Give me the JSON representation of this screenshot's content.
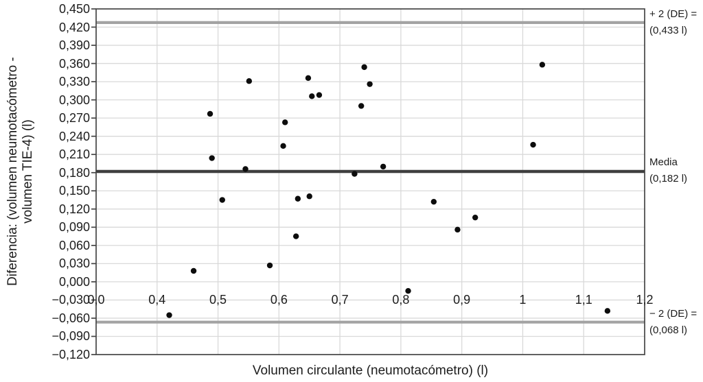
{
  "chart_data": {
    "type": "scatter",
    "title": "",
    "xlabel": "Volumen circulante (neumotacómetro) (l)",
    "ylabel_line1": "Diferencia: (volumen neumotacómetro -",
    "ylabel_line2": "volumen TIE-4) (l)",
    "x_tick_labels": [
      "0,0",
      "0,4",
      "0,5",
      "0,6",
      "0,7",
      "0,8",
      "0,9",
      "1",
      "1,1",
      "1,2"
    ],
    "x_tick_values": [
      0.0,
      0.4,
      0.5,
      0.6,
      0.7,
      0.8,
      0.9,
      1.0,
      1.1,
      1.2
    ],
    "y_tick_labels": [
      "0,450",
      "0,420",
      "0,390",
      "0,360",
      "0,330",
      "0,300",
      "0,270",
      "0,240",
      "0,210",
      "0,180",
      "0,150",
      "0,120",
      "0,090",
      "0,060",
      "0,030",
      "0,000",
      "−0,030",
      "−0,060",
      "−0,090",
      "−0,120"
    ],
    "y_tick_values": [
      0.45,
      0.42,
      0.39,
      0.36,
      0.33,
      0.3,
      0.27,
      0.24,
      0.21,
      0.18,
      0.15,
      0.12,
      0.09,
      0.06,
      0.03,
      0.0,
      -0.03,
      -0.06,
      -0.09,
      -0.12
    ],
    "ylim": [
      -0.12,
      0.45
    ],
    "grid": true,
    "legend_position": "none",
    "x_axis_note": "category-style axis: interval 0,0 to 0,4 drawn same width as the 0,1 steps; x tick labels sit inside plot at the -0,030 level",
    "points": [
      {
        "x": 0.42,
        "y": -0.055
      },
      {
        "x": 0.46,
        "y": 0.018
      },
      {
        "x": 0.487,
        "y": 0.277
      },
      {
        "x": 0.49,
        "y": 0.204
      },
      {
        "x": 0.507,
        "y": 0.135
      },
      {
        "x": 0.551,
        "y": 0.331
      },
      {
        "x": 0.545,
        "y": 0.186
      },
      {
        "x": 0.585,
        "y": 0.027
      },
      {
        "x": 0.61,
        "y": 0.263
      },
      {
        "x": 0.607,
        "y": 0.224
      },
      {
        "x": 0.631,
        "y": 0.137
      },
      {
        "x": 0.628,
        "y": 0.075
      },
      {
        "x": 0.648,
        "y": 0.336
      },
      {
        "x": 0.65,
        "y": 0.141
      },
      {
        "x": 0.654,
        "y": 0.306
      },
      {
        "x": 0.666,
        "y": 0.308
      },
      {
        "x": 0.724,
        "y": 0.178
      },
      {
        "x": 0.74,
        "y": 0.354
      },
      {
        "x": 0.749,
        "y": 0.326
      },
      {
        "x": 0.735,
        "y": 0.29
      },
      {
        "x": 0.771,
        "y": 0.19
      },
      {
        "x": 0.812,
        "y": -0.015
      },
      {
        "x": 0.854,
        "y": 0.132
      },
      {
        "x": 0.893,
        "y": 0.086
      },
      {
        "x": 0.922,
        "y": 0.106
      },
      {
        "x": 1.017,
        "y": 0.226
      },
      {
        "x": 1.032,
        "y": 0.358
      },
      {
        "x": 1.139,
        "y": -0.048
      }
    ],
    "ref_lines": {
      "upper": {
        "value": 0.433,
        "render_value": 0.4275,
        "label_line1": "+ 2 (DE) =",
        "label_line2": "(0,433 l)"
      },
      "mean": {
        "value": 0.182,
        "render_value": 0.182,
        "label_line1": "Media",
        "label_line2": "(0,182 l)"
      },
      "lower": {
        "value": -0.068,
        "render_value": -0.0665,
        "label_line1": "− 2 (DE) =",
        "label_line2": "(0,068 l)"
      }
    },
    "colors": {
      "point": "#0d0d0d",
      "mean_line": "#3f3f3f",
      "sd_line": "#a3a3a3",
      "gridline": "#d9d9d9",
      "border": "#444444",
      "text": "#1c1c1c",
      "background": "#ffffff"
    }
  }
}
